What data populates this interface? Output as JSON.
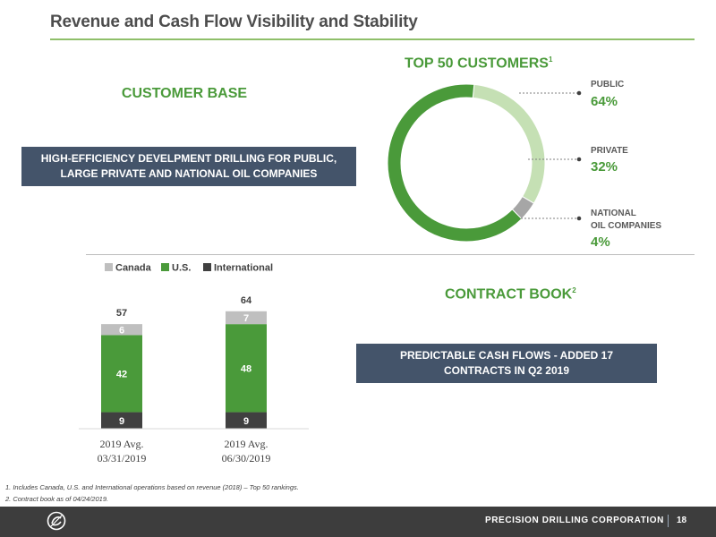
{
  "header": {
    "title": "Revenue and Cash Flow Visibility and Stability"
  },
  "customer_base": {
    "title": "CUSTOMER BASE",
    "banner_line1": "HIGH-EFFICIENCY DEVELPMENT DRILLING FOR PUBLIC,",
    "banner_line2": "LARGE PRIVATE AND NATIONAL OIL COMPANIES"
  },
  "top50": {
    "title": "TOP 50 CUSTOMERS",
    "title_sup": "1",
    "segments": [
      {
        "category": "PUBLIC",
        "value": 64,
        "label": "64%",
        "color": "#4a9a3a"
      },
      {
        "category": "PRIVATE",
        "value": 32,
        "label": "32%",
        "color": "#c5e0b4"
      },
      {
        "category_line1": "NATIONAL",
        "category_line2": "OIL COMPANIES",
        "value": 4,
        "label": "4%",
        "color": "#a6a6a6"
      }
    ]
  },
  "contract_book": {
    "title": "CONTRACT BOOK",
    "title_sup": "2",
    "banner_line1": "PREDICTABLE CASH FLOWS - ADDED 17",
    "banner_line2": "CONTRACTS IN Q2 2019"
  },
  "chart_data": [
    {
      "type": "pie",
      "title": "TOP 50 CUSTOMERS",
      "categories": [
        "PUBLIC",
        "PRIVATE",
        "NATIONAL OIL COMPANIES"
      ],
      "values": [
        64,
        32,
        4
      ],
      "colors": [
        "#4a9a3a",
        "#c5e0b4",
        "#a6a6a6"
      ]
    },
    {
      "type": "bar",
      "stacked": true,
      "categories": [
        [
          "2019 Avg.",
          "03/31/2019"
        ],
        [
          "2019 Avg.",
          "06/30/2019"
        ]
      ],
      "series": [
        {
          "name": "International",
          "values": [
            9,
            9
          ],
          "color": "#404040"
        },
        {
          "name": "U.S.",
          "values": [
            42,
            48
          ],
          "color": "#4a9a3a"
        },
        {
          "name": "Canada",
          "values": [
            6,
            7
          ],
          "color": "#bfbfbf"
        }
      ],
      "totals": [
        57,
        64
      ],
      "legend_order": [
        "Canada",
        "U.S.",
        "International"
      ],
      "legend": "top",
      "ylim": [
        0,
        70
      ],
      "grid": false
    }
  ],
  "footnotes": [
    "1.    Includes  Canada, U.S. and International operations based on revenue (2018) – Top 50 rankings.",
    "2.    Contract book as of 04/24/2019."
  ],
  "footer": {
    "company": "PRECISION DRILLING CORPORATION",
    "page": "18"
  }
}
